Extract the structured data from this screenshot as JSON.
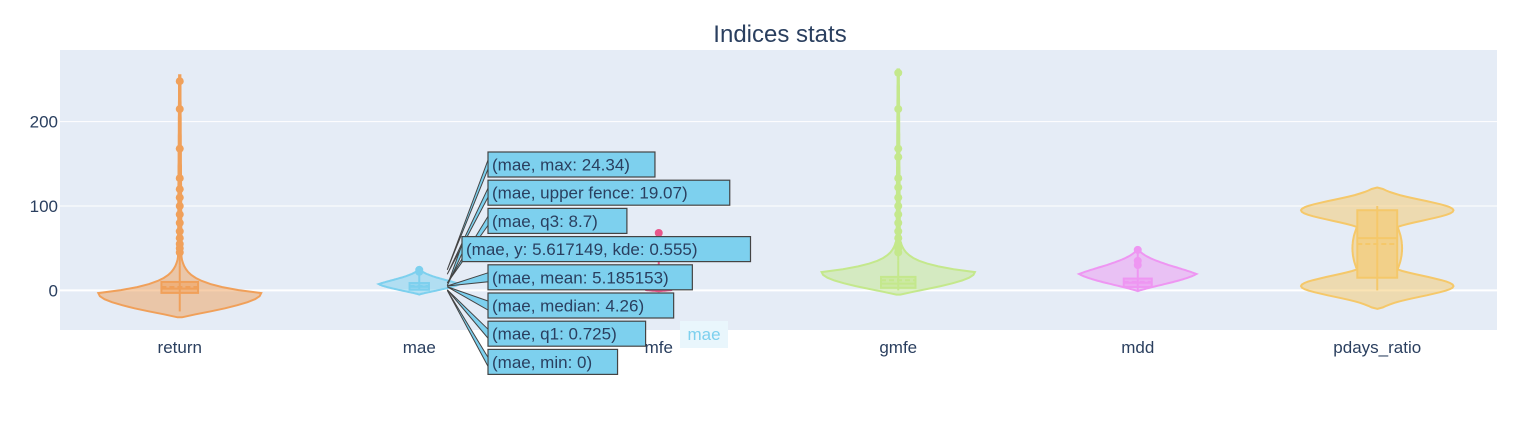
{
  "chart_data": {
    "type": "violin",
    "title": "Indices stats",
    "xlabel": "",
    "ylabel": "",
    "ylim": [
      -47,
      285
    ],
    "yticks": [
      "0",
      "100",
      "200"
    ],
    "grid": true,
    "legend": "none",
    "categories": [
      "return",
      "mae",
      "mfe",
      "gmfe",
      "mdd",
      "pdays_ratio"
    ],
    "series": [
      {
        "category": "return",
        "color": "#F0A05A",
        "shape": "long-tail",
        "kde_range": [
          -32,
          255
        ],
        "body_halfwidth": 0.68,
        "min": -25,
        "q1": -3,
        "median": 2,
        "mean": 4,
        "q3": 10,
        "upper_fence": 30,
        "max": 250,
        "outliers": [
          45,
          50,
          55,
          62,
          70,
          80,
          90,
          100,
          110,
          120,
          133,
          168,
          215,
          248
        ]
      },
      {
        "category": "mae",
        "color": "#7DD0EE",
        "shape": "compact",
        "kde_range": [
          -5,
          26
        ],
        "body_halfwidth": 0.36,
        "min": 0,
        "q1": 0.725,
        "median": 4.26,
        "mean": 5.185153,
        "q3": 8.7,
        "upper_fence": 19.07,
        "max": 24.34,
        "outliers": [
          22,
          24.34
        ]
      },
      {
        "category": "mfe",
        "color": "#E8568A",
        "shape": "compact",
        "kde_range": [
          -1,
          3
        ],
        "body_halfwidth": 0.12,
        "min": 0,
        "q1": 0.3,
        "median": 0.8,
        "mean": 1,
        "q3": 1.6,
        "upper_fence": 2.5,
        "max": 68,
        "outliers": [
          68
        ]
      },
      {
        "category": "gmfe",
        "color": "#C4E88C",
        "shape": "long-tail",
        "kde_range": [
          -5,
          262
        ],
        "body_halfwidth": 0.64,
        "min": 0,
        "q1": 3,
        "median": 8,
        "mean": 12,
        "q3": 16,
        "upper_fence": 35,
        "max": 258,
        "outliers": [
          45,
          50,
          55,
          62,
          70,
          80,
          90,
          100,
          110,
          122,
          133,
          158,
          168,
          215,
          258
        ]
      },
      {
        "category": "mdd",
        "color": "#EE96F2",
        "shape": "compact",
        "kde_range": [
          -1,
          50
        ],
        "body_halfwidth": 0.52,
        "min": 0,
        "q1": 4,
        "median": 9,
        "mean": 10,
        "q3": 14,
        "upper_fence": 25,
        "max": 48,
        "outliers": [
          30,
          35,
          48
        ]
      },
      {
        "category": "pdays_ratio",
        "color": "#F5C86A",
        "shape": "bimodal",
        "kde_range": [
          -22,
          122
        ],
        "body_halfwidth": 0.74,
        "min": 0,
        "q1": 15,
        "median": 62,
        "mean": 55,
        "q3": 95,
        "upper_fence": 100,
        "max": 100,
        "outliers": []
      }
    ],
    "hover": {
      "category": "mae",
      "color": "#7DD0EE",
      "labels": [
        {
          "text": "(mae, max: 24.34)",
          "value": 24.34
        },
        {
          "text": "(mae, upper fence: 19.07)",
          "value": 19.07
        },
        {
          "text": "(mae, q3: 8.7)",
          "value": 8.7
        },
        {
          "text": "(mae, y: 5.617149, kde: 0.555)",
          "value": 5.617149
        },
        {
          "text": "(mae, mean: 5.185153)",
          "value": 5.185153
        },
        {
          "text": "(mae, median: 4.26)",
          "value": 4.26
        },
        {
          "text": "(mae, q1: 0.725)",
          "value": 0.725
        },
        {
          "text": "(mae, min: 0)",
          "value": 0
        }
      ],
      "axis_label": "mae"
    }
  }
}
